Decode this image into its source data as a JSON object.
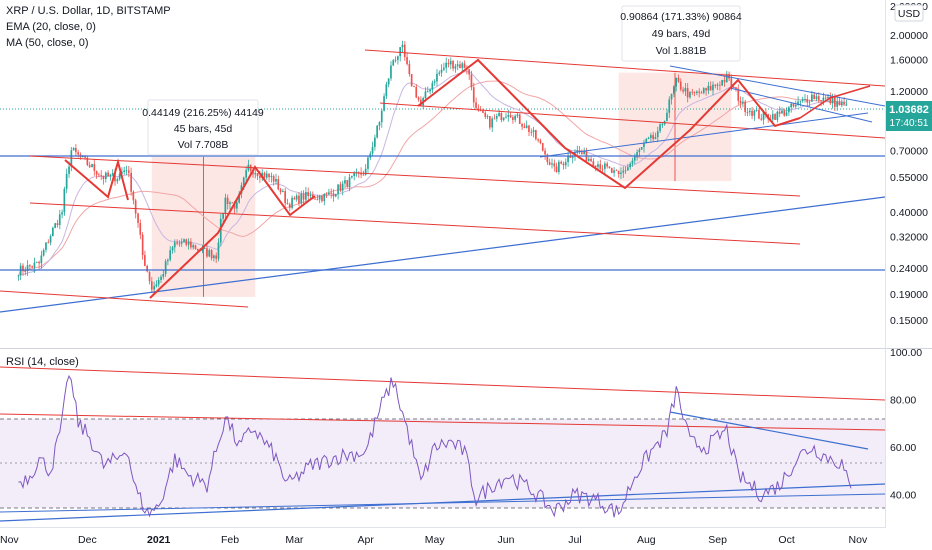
{
  "header": {
    "title": "XRP / U.S. Dollar, 1D, BITSTAMP",
    "ema_label": "EMA (20, close, 0)",
    "ma_label": "MA (50, close, 0)",
    "rsi_label": "RSI (14, close)",
    "currency": "USD"
  },
  "colors": {
    "up": "#26a69a",
    "down": "#ef5350",
    "channel": "#e53935",
    "trend": "#3d6fd1",
    "rsi_line": "#7e57c2",
    "price_badge": "#26a69a",
    "measure_fill": "#fbe3df"
  },
  "chart_data": [
    {
      "type": "candlestick",
      "title": "XRP / U.S. Dollar, 1D, BITSTAMP",
      "y_scale": "log",
      "ylim": [
        0.125,
        2.6
      ],
      "y_ticks": [
        "2.60000",
        "2.00000",
        "1.60000",
        "1.20000",
        "0.90000",
        "0.70000",
        "0.55000",
        "0.40000",
        "0.32000",
        "0.24000",
        "0.19000",
        "0.15000"
      ],
      "x_ticks": [
        "Nov",
        "Dec",
        "2021",
        "Feb",
        "Mar",
        "Apr",
        "May",
        "Jun",
        "Jul",
        "Aug",
        "Sep",
        "Oct",
        "Nov"
      ],
      "current_price": "1.03682",
      "countdown": "17:40:51",
      "waypoints": [
        [
          "2020-11-01",
          0.235
        ],
        [
          "2020-11-10",
          0.25
        ],
        [
          "2020-11-20",
          0.4
        ],
        [
          "2020-11-24",
          0.7
        ],
        [
          "2020-12-01",
          0.62
        ],
        [
          "2020-12-08",
          0.55
        ],
        [
          "2020-12-14",
          0.55
        ],
        [
          "2020-12-18",
          0.6
        ],
        [
          "2020-12-22",
          0.4
        ],
        [
          "2020-12-25",
          0.27
        ],
        [
          "2020-12-29",
          0.2
        ],
        [
          "2021-01-02",
          0.22
        ],
        [
          "2021-01-08",
          0.3
        ],
        [
          "2021-01-14",
          0.3
        ],
        [
          "2021-01-20",
          0.28
        ],
        [
          "2021-01-26",
          0.27
        ],
        [
          "2021-01-30",
          0.45
        ],
        [
          "2021-02-04",
          0.42
        ],
        [
          "2021-02-09",
          0.6
        ],
        [
          "2021-02-14",
          0.57
        ],
        [
          "2021-02-20",
          0.54
        ],
        [
          "2021-02-26",
          0.43
        ],
        [
          "2021-03-05",
          0.46
        ],
        [
          "2021-03-15",
          0.46
        ],
        [
          "2021-03-25",
          0.53
        ],
        [
          "2021-04-01",
          0.58
        ],
        [
          "2021-04-07",
          0.9
        ],
        [
          "2021-04-13",
          1.6
        ],
        [
          "2021-04-17",
          1.75
        ],
        [
          "2021-04-20",
          1.35
        ],
        [
          "2021-04-25",
          1.05
        ],
        [
          "2021-05-01",
          1.35
        ],
        [
          "2021-05-07",
          1.55
        ],
        [
          "2021-05-15",
          1.5
        ],
        [
          "2021-05-19",
          1.0
        ],
        [
          "2021-05-25",
          0.9
        ],
        [
          "2021-06-02",
          1.0
        ],
        [
          "2021-06-12",
          0.83
        ],
        [
          "2021-06-22",
          0.58
        ],
        [
          "2021-07-01",
          0.7
        ],
        [
          "2021-07-10",
          0.63
        ],
        [
          "2021-07-20",
          0.55
        ],
        [
          "2021-07-25",
          0.62
        ],
        [
          "2021-08-01",
          0.75
        ],
        [
          "2021-08-06",
          0.8
        ],
        [
          "2021-08-10",
          1.0
        ],
        [
          "2021-08-14",
          1.3
        ],
        [
          "2021-08-20",
          1.15
        ],
        [
          "2021-08-27",
          1.2
        ],
        [
          "2021-09-05",
          1.35
        ],
        [
          "2021-09-12",
          1.05
        ],
        [
          "2021-09-20",
          0.95
        ],
        [
          "2021-09-28",
          0.97
        ],
        [
          "2021-10-05",
          1.05
        ],
        [
          "2021-10-12",
          1.15
        ],
        [
          "2021-10-20",
          1.1
        ],
        [
          "2021-10-27",
          1.04
        ]
      ],
      "overlays": [
        "EMA (20, close, 0)",
        "MA (50, close, 0)"
      ]
    },
    {
      "type": "line",
      "title": "RSI (14, close)",
      "ylim": [
        25,
        100
      ],
      "y_ticks": [
        "100.00",
        "80.00",
        "60.00",
        "40.00"
      ],
      "guide_levels": [
        70,
        50,
        30
      ],
      "waypoints": [
        [
          "2020-11-01",
          45
        ],
        [
          "2020-11-06",
          48
        ],
        [
          "2020-11-10",
          55
        ],
        [
          "2020-11-15",
          50
        ],
        [
          "2020-11-20",
          70
        ],
        [
          "2020-11-23",
          92
        ],
        [
          "2020-11-27",
          70
        ],
        [
          "2020-12-02",
          64
        ],
        [
          "2020-12-08",
          52
        ],
        [
          "2020-12-14",
          55
        ],
        [
          "2020-12-18",
          60
        ],
        [
          "2020-12-22",
          42
        ],
        [
          "2020-12-27",
          32
        ],
        [
          "2021-01-01",
          35
        ],
        [
          "2021-01-08",
          55
        ],
        [
          "2021-01-14",
          48
        ],
        [
          "2021-01-22",
          44
        ],
        [
          "2021-01-30",
          73
        ],
        [
          "2021-02-05",
          60
        ],
        [
          "2021-02-11",
          68
        ],
        [
          "2021-02-20",
          57
        ],
        [
          "2021-02-26",
          44
        ],
        [
          "2021-03-08",
          52
        ],
        [
          "2021-03-20",
          56
        ],
        [
          "2021-04-01",
          58
        ],
        [
          "2021-04-08",
          78
        ],
        [
          "2021-04-13",
          88
        ],
        [
          "2021-04-20",
          64
        ],
        [
          "2021-04-25",
          45
        ],
        [
          "2021-05-01",
          60
        ],
        [
          "2021-05-08",
          62
        ],
        [
          "2021-05-14",
          58
        ],
        [
          "2021-05-19",
          38
        ],
        [
          "2021-05-26",
          44
        ],
        [
          "2021-06-02",
          48
        ],
        [
          "2021-06-12",
          42
        ],
        [
          "2021-06-22",
          33
        ],
        [
          "2021-07-01",
          40
        ],
        [
          "2021-07-10",
          38
        ],
        [
          "2021-07-20",
          32
        ],
        [
          "2021-07-27",
          48
        ],
        [
          "2021-08-03",
          58
        ],
        [
          "2021-08-10",
          66
        ],
        [
          "2021-08-14",
          84
        ],
        [
          "2021-08-20",
          62
        ],
        [
          "2021-08-27",
          60
        ],
        [
          "2021-09-05",
          67
        ],
        [
          "2021-09-10",
          48
        ],
        [
          "2021-09-20",
          40
        ],
        [
          "2021-09-28",
          44
        ],
        [
          "2021-10-06",
          56
        ],
        [
          "2021-10-12",
          60
        ],
        [
          "2021-10-18",
          56
        ],
        [
          "2021-10-25",
          53
        ],
        [
          "2021-10-29",
          41
        ]
      ]
    }
  ],
  "annotations": [
    {
      "line1": "0.44149 (216.25%) 44149",
      "line2": "45 bars, 45d",
      "line3": "Vol 7.708B"
    },
    {
      "line1": "0.90864 (171.33%) 90864",
      "line2": "49 bars, 49d",
      "line3": "Vol 1.881B"
    }
  ]
}
